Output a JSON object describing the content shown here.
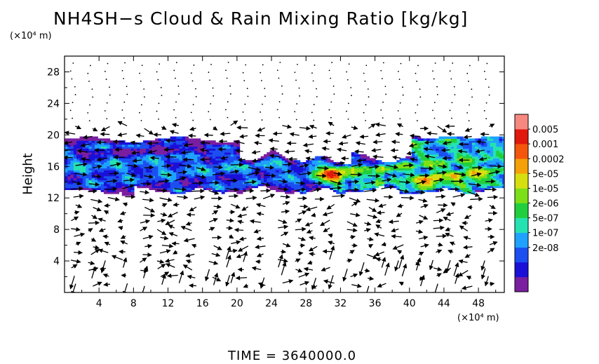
{
  "chart_data": {
    "type": "heatmap",
    "title": "NH4SH−s Cloud & Rain Mixing Ratio [kg/kg]",
    "ylabel": "Height",
    "y_unit": "(×10⁴ m)",
    "x_unit": "(×10⁴ m)",
    "footer": "TIME  =  3640000.0",
    "xlim": [
      0,
      51
    ],
    "ylim": [
      0,
      30
    ],
    "x_ticks": [
      4,
      8,
      12,
      16,
      20,
      24,
      28,
      32,
      36,
      40,
      44,
      48
    ],
    "y_ticks": [
      4,
      8,
      12,
      16,
      20,
      24,
      28
    ],
    "colorbar": {
      "labels": [
        "0.005",
        "0.001",
        "0.0002",
        "5e-05",
        "1e-05",
        "2e-06",
        "5e-07",
        "1e-07",
        "2e-08"
      ],
      "colors": [
        "#7a1fa0",
        "#1a10d8",
        "#1c4ff0",
        "#1fa2ff",
        "#25e3b0",
        "#21cf3e",
        "#7ddf17",
        "#d8df10",
        "#f5a10a",
        "#f4560b",
        "#e1180d",
        "#f78880"
      ]
    },
    "cloud_layer": {
      "main_band_height_range": [
        12.8,
        19.5
      ],
      "upper_band_height_range": [
        17.2,
        19.8
      ],
      "highest_value_region_x": [
        29,
        33
      ],
      "highest_value_region_height": [
        13.5,
        16
      ],
      "secondary_maximum_x": [
        41,
        43
      ],
      "secondary_maximum_height": [
        13,
        15
      ]
    },
    "wind_vectors": "arrow field overlaid on grid (2 × 1 ×10⁴ m spacing)"
  }
}
